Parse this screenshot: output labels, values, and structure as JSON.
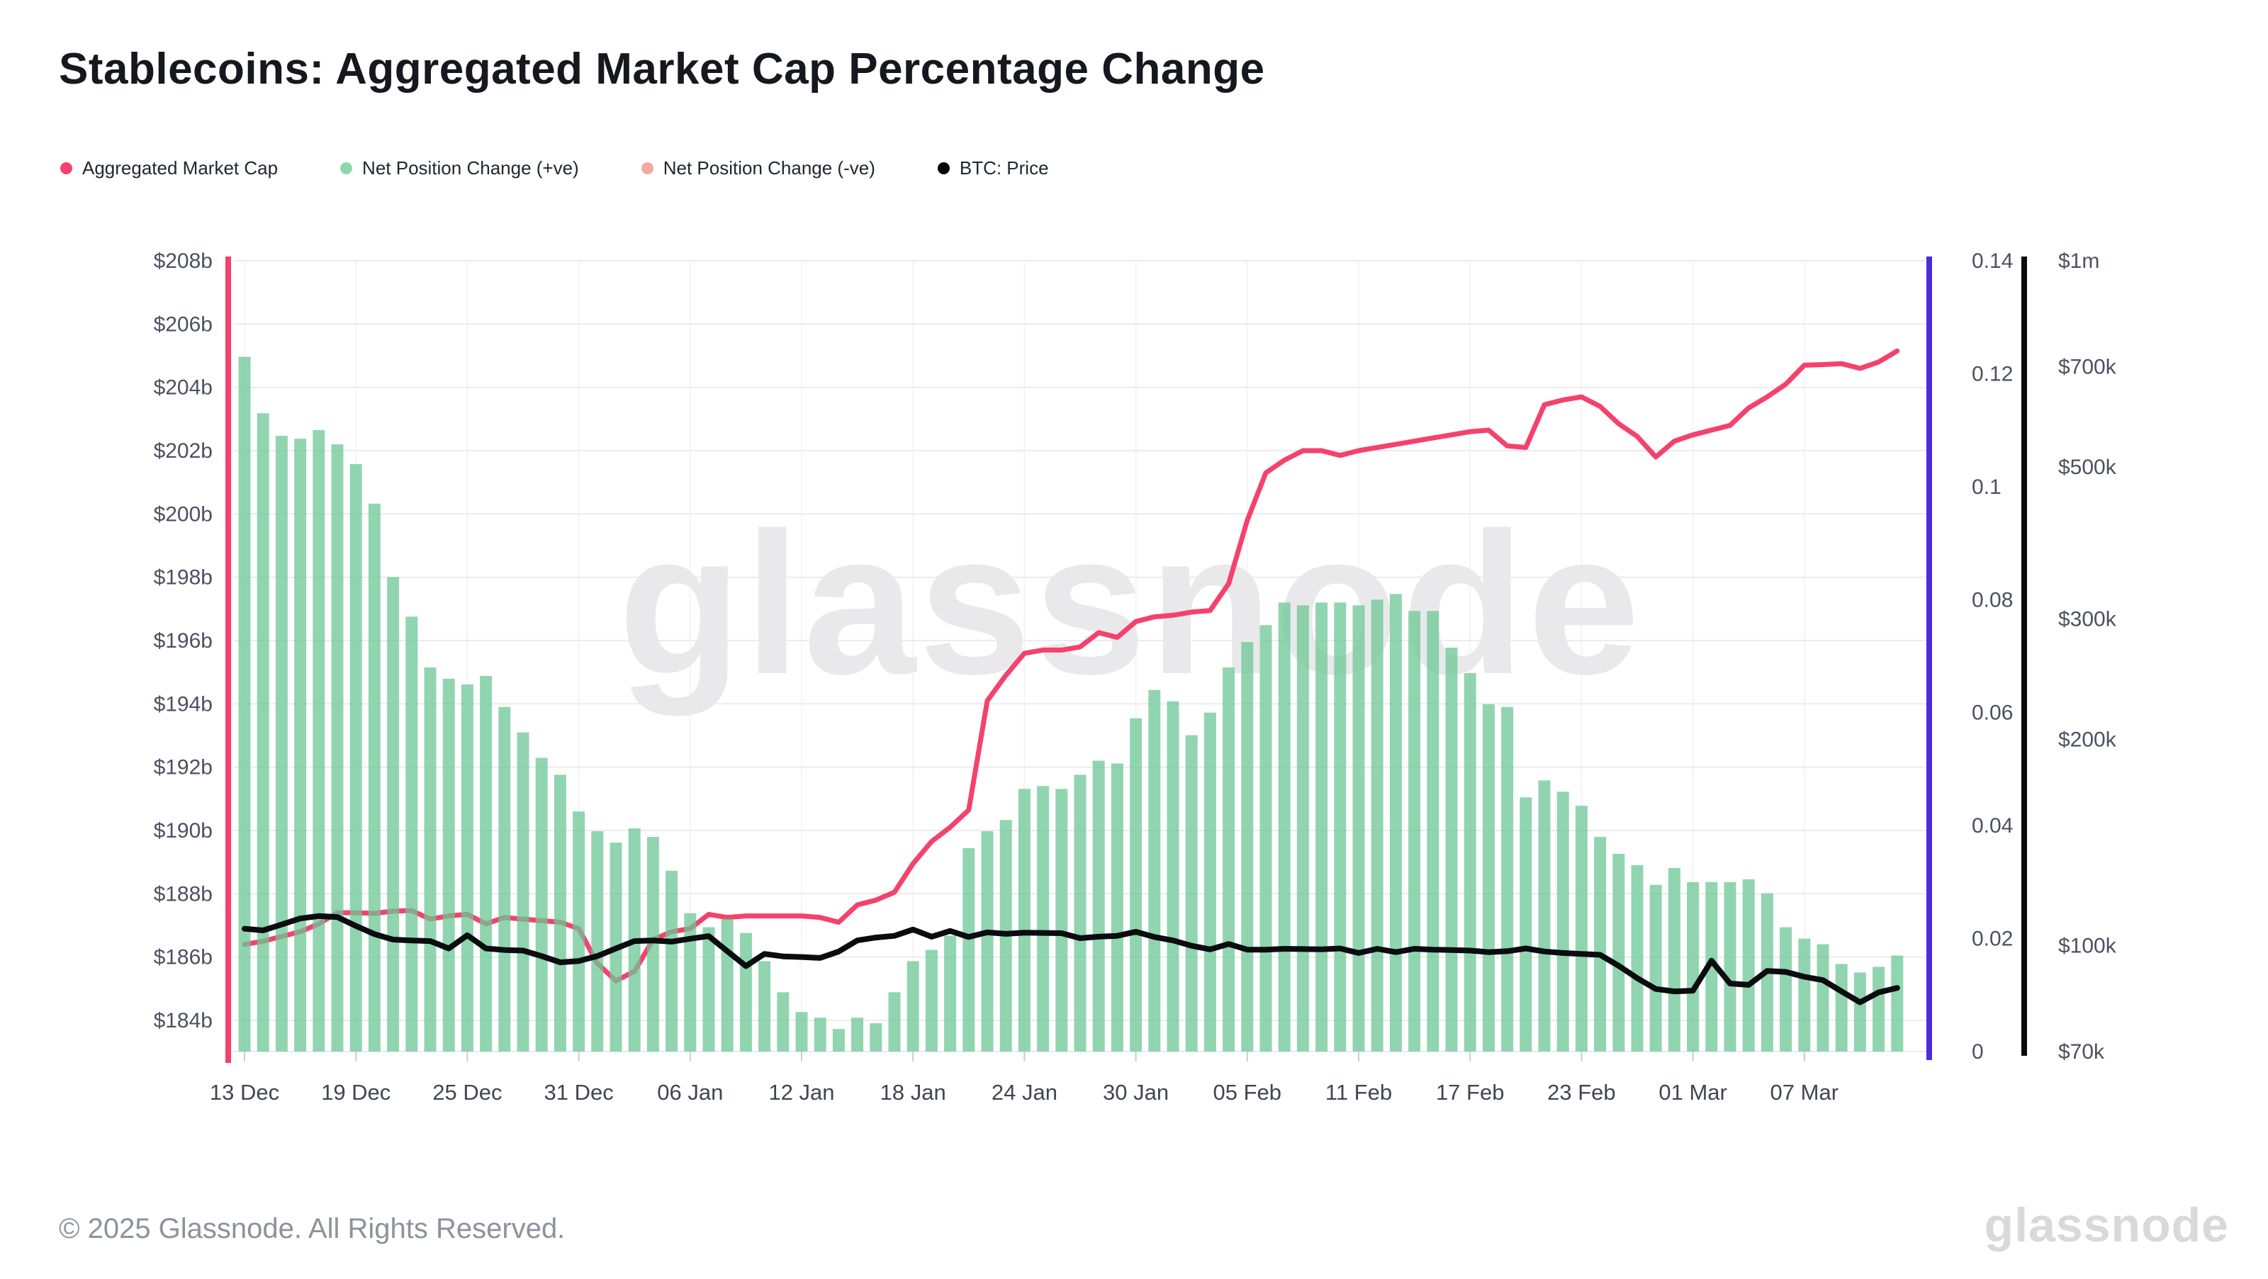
{
  "title": "Stablecoins: Aggregated Market Cap Percentage Change",
  "legend": [
    {
      "label": "Aggregated Market Cap",
      "color": "#f4426c"
    },
    {
      "label": "Net Position Change (+ve)",
      "color": "#8fd6af"
    },
    {
      "label": "Net Position Change (-ve)",
      "color": "#f2a9a1"
    },
    {
      "label": "BTC: Price",
      "color": "#000000"
    }
  ],
  "watermark": "glassnode",
  "footer": {
    "copyright": "© 2025 Glassnode. All Rights Reserved.",
    "logo": "glassnode"
  },
  "chart_data": {
    "type": "combo",
    "title": "Stablecoins: Aggregated Market Cap Percentage Change",
    "grid": true,
    "legend_position": "top-left",
    "x_tick_labels": [
      "13 Dec",
      "19 Dec",
      "25 Dec",
      "31 Dec",
      "06 Jan",
      "12 Jan",
      "18 Jan",
      "24 Jan",
      "30 Jan",
      "05 Feb",
      "11 Feb",
      "17 Feb",
      "23 Feb",
      "01 Mar",
      "07 Mar"
    ],
    "x_tick_step_days": 6,
    "dates": [
      "2024-12-13",
      "2024-12-14",
      "2024-12-15",
      "2024-12-16",
      "2024-12-17",
      "2024-12-18",
      "2024-12-19",
      "2024-12-20",
      "2024-12-21",
      "2024-12-22",
      "2024-12-23",
      "2024-12-24",
      "2024-12-25",
      "2024-12-26",
      "2024-12-27",
      "2024-12-28",
      "2024-12-29",
      "2024-12-30",
      "2024-12-31",
      "2025-01-01",
      "2025-01-02",
      "2025-01-03",
      "2025-01-04",
      "2025-01-05",
      "2025-01-06",
      "2025-01-07",
      "2025-01-08",
      "2025-01-09",
      "2025-01-10",
      "2025-01-11",
      "2025-01-12",
      "2025-01-13",
      "2025-01-14",
      "2025-01-15",
      "2025-01-16",
      "2025-01-17",
      "2025-01-18",
      "2025-01-19",
      "2025-01-20",
      "2025-01-21",
      "2025-01-22",
      "2025-01-23",
      "2025-01-24",
      "2025-01-25",
      "2025-01-26",
      "2025-01-27",
      "2025-01-28",
      "2025-01-29",
      "2025-01-30",
      "2025-01-31",
      "2025-02-01",
      "2025-02-02",
      "2025-02-03",
      "2025-02-04",
      "2025-02-05",
      "2025-02-06",
      "2025-02-07",
      "2025-02-08",
      "2025-02-09",
      "2025-02-10",
      "2025-02-11",
      "2025-02-12",
      "2025-02-13",
      "2025-02-14",
      "2025-02-15",
      "2025-02-16",
      "2025-02-17",
      "2025-02-18",
      "2025-02-19",
      "2025-02-20",
      "2025-02-21",
      "2025-02-22",
      "2025-02-23",
      "2025-02-24",
      "2025-02-25",
      "2025-02-26",
      "2025-02-27",
      "2025-02-28",
      "2025-03-01",
      "2025-03-02",
      "2025-03-03",
      "2025-03-04",
      "2025-03-05",
      "2025-03-06",
      "2025-03-07",
      "2025-03-08",
      "2025-03-09",
      "2025-03-10",
      "2025-03-11",
      "2025-03-12"
    ],
    "series": [
      {
        "name": "Net Position Change (+ve)",
        "type": "bar",
        "axis": "right_ratio",
        "color": "rgba(107,199,149,0.75)",
        "values": [
          0.123,
          0.113,
          0.109,
          0.1085,
          0.11,
          0.1075,
          0.104,
          0.097,
          0.084,
          0.077,
          0.068,
          0.066,
          0.065,
          0.0665,
          0.061,
          0.0565,
          0.052,
          0.049,
          0.0425,
          0.039,
          0.037,
          0.0395,
          0.038,
          0.032,
          0.0245,
          0.022,
          0.0235,
          0.021,
          0.016,
          0.0105,
          0.007,
          0.006,
          0.004,
          0.006,
          0.005,
          0.0105,
          0.016,
          0.018,
          0.0205,
          0.036,
          0.039,
          0.041,
          0.0465,
          0.047,
          0.0465,
          0.049,
          0.0515,
          0.051,
          0.059,
          0.064,
          0.062,
          0.056,
          0.06,
          0.068,
          0.0725,
          0.0755,
          0.0795,
          0.079,
          0.0795,
          0.0795,
          0.079,
          0.08,
          0.081,
          0.078,
          0.078,
          0.0715,
          0.067,
          0.0615,
          0.061,
          0.045,
          0.048,
          0.046,
          0.0435,
          0.038,
          0.035,
          0.033,
          0.0295,
          0.0325,
          0.03,
          0.03,
          0.03,
          0.0305,
          0.028,
          0.022,
          0.02,
          0.019,
          0.0155,
          0.014,
          0.015,
          0.017
        ]
      },
      {
        "name": "Aggregated Market Cap",
        "type": "line",
        "axis": "left_usd_b",
        "color": "#f4426c",
        "values": [
          186.4,
          186.5,
          186.65,
          186.8,
          187.05,
          187.4,
          187.4,
          187.38,
          187.45,
          187.47,
          187.2,
          187.3,
          187.35,
          187.05,
          187.25,
          187.2,
          187.15,
          187.1,
          186.9,
          185.8,
          185.25,
          185.55,
          186.55,
          186.8,
          186.9,
          187.35,
          187.25,
          187.3,
          187.3,
          187.3,
          187.3,
          187.25,
          187.1,
          187.65,
          187.8,
          188.05,
          188.95,
          189.65,
          190.1,
          190.65,
          194.1,
          194.9,
          195.6,
          195.7,
          195.7,
          195.8,
          196.25,
          196.1,
          196.6,
          196.75,
          196.8,
          196.9,
          196.95,
          197.8,
          199.8,
          201.3,
          201.7,
          202.0,
          202.0,
          201.85,
          202.0,
          202.1,
          202.2,
          202.3,
          202.4,
          202.5,
          202.6,
          202.65,
          202.15,
          202.1,
          203.45,
          203.6,
          203.7,
          203.4,
          202.85,
          202.45,
          201.8,
          202.3,
          202.5,
          202.65,
          202.8,
          203.35,
          203.7,
          204.1,
          204.7,
          204.72,
          204.75,
          204.6,
          204.8,
          205.15
        ]
      },
      {
        "name": "BTC: Price",
        "type": "line",
        "axis": "right_btc_usd_k",
        "color": "#0b0c0f",
        "values": [
          105.8,
          105.2,
          107.3,
          109.5,
          110.4,
          110.0,
          106.8,
          103.9,
          102.0,
          101.7,
          101.5,
          99.0,
          103.5,
          99.0,
          98.5,
          98.3,
          96.5,
          94.5,
          94.9,
          96.5,
          99.0,
          101.5,
          101.7,
          101.3,
          102.3,
          103.2,
          98.1,
          93.3,
          97.2,
          96.4,
          96.2,
          95.9,
          98.0,
          101.7,
          102.7,
          103.3,
          105.5,
          103.0,
          105.0,
          102.9,
          104.5,
          104.0,
          104.4,
          104.3,
          104.2,
          102.5,
          103.0,
          103.3,
          104.7,
          102.9,
          101.7,
          99.9,
          98.7,
          100.5,
          98.6,
          98.6,
          98.9,
          98.8,
          98.7,
          99.0,
          97.5,
          98.9,
          97.8,
          98.9,
          98.6,
          98.5,
          98.3,
          97.8,
          98.1,
          99.0,
          98.0,
          97.5,
          97.2,
          96.9,
          93.4,
          89.6,
          86.4,
          85.7,
          85.9,
          95.0,
          88.0,
          87.6,
          91.8,
          91.5,
          90.0,
          89.0,
          85.7,
          82.6,
          85.4,
          86.7
        ]
      }
    ],
    "axes": {
      "left_usd_b": {
        "title": "Aggregated Market Cap",
        "color": "#f4426c",
        "min": 184,
        "max": 208,
        "tick_labels": [
          "$208b",
          "$206b",
          "$204b",
          "$202b",
          "$200b",
          "$198b",
          "$196b",
          "$194b",
          "$192b",
          "$190b",
          "$188b",
          "$186b",
          "$184b"
        ],
        "tick_values": [
          208,
          206,
          204,
          202,
          200,
          198,
          196,
          194,
          192,
          190,
          188,
          186,
          184
        ]
      },
      "right_ratio": {
        "title": "Net Position Change",
        "color": "#4a2be0",
        "min": 0,
        "max": 0.14,
        "tick_labels": [
          "0.14",
          "0.12",
          "0.1",
          "0.08",
          "0.06",
          "0.04",
          "0.02",
          "0"
        ],
        "tick_values": [
          0.14,
          0.12,
          0.1,
          0.08,
          0.06,
          0.04,
          0.02,
          0
        ]
      },
      "right_btc_usd_k": {
        "title": "BTC: Price",
        "color": "#0b0c0f",
        "min": 70,
        "max": 1000,
        "scale": "log",
        "tick_labels": [
          "$1m",
          "$700k",
          "$500k",
          "$300k",
          "$200k",
          "$100k",
          "$70k"
        ],
        "tick_values": [
          1000,
          700,
          500,
          300,
          200,
          100,
          70
        ]
      }
    }
  }
}
